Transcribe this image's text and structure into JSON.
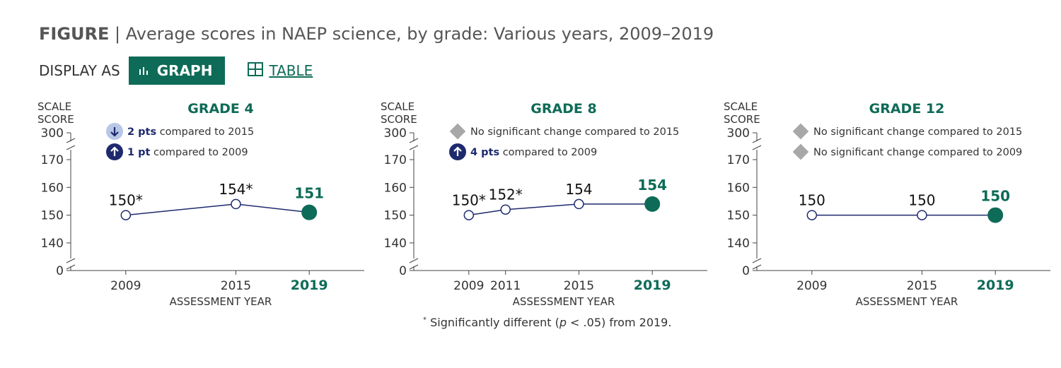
{
  "figure": {
    "prefix": "FIGURE",
    "separator": "|",
    "title": "Average scores in NAEP science, by grade: Various years, 2009–2019"
  },
  "display": {
    "label": "DISPLAY AS",
    "graph_label": "GRAPH",
    "table_label": "TABLE",
    "graph_icon": "bar-chart-icon",
    "table_icon": "grid-table-icon"
  },
  "colors": {
    "accent": "#0e6b57",
    "navy": "#1e2a6e",
    "badge_down": "#b8c7e6",
    "diamond": "#a8a8a8"
  },
  "footnote": {
    "mark": "*",
    "text_before": "Significantly different (",
    "p": "p",
    "text_after": " < .05) from 2019."
  },
  "chart_data": [
    {
      "type": "line",
      "title": "GRADE 4",
      "ylabel": "SCALE SCORE",
      "xlabel": "ASSESSMENT YEAR",
      "y_ticks": [
        "0",
        "140",
        "150",
        "160",
        "170",
        "300"
      ],
      "y_break": true,
      "ylim": [
        135,
        175
      ],
      "x_range": [
        2006,
        2022
      ],
      "x": [
        2009,
        2015,
        2019
      ],
      "x_labels": [
        "2009",
        "2015",
        "2019"
      ],
      "values": [
        150,
        154,
        151
      ],
      "labels": [
        "150*",
        "154*",
        "151"
      ],
      "highlight_last": true,
      "notes": [
        {
          "icon": "down",
          "bold": "2 pts",
          "text": " compared to 2015"
        },
        {
          "icon": "up",
          "bold": "1 pt",
          "text": " compared to 2009"
        }
      ]
    },
    {
      "type": "line",
      "title": "GRADE 8",
      "ylabel": "SCALE SCORE",
      "xlabel": "ASSESSMENT YEAR",
      "y_ticks": [
        "0",
        "140",
        "150",
        "160",
        "170",
        "300"
      ],
      "y_break": true,
      "ylim": [
        135,
        175
      ],
      "x_range": [
        2006,
        2022
      ],
      "x": [
        2009,
        2011,
        2015,
        2019
      ],
      "x_labels": [
        "2009",
        "2011",
        "2015",
        "2019"
      ],
      "values": [
        150,
        152,
        154,
        154
      ],
      "labels": [
        "150*",
        "152*",
        "154",
        "154"
      ],
      "highlight_last": true,
      "notes": [
        {
          "icon": "diamond",
          "bold": "",
          "text": "No significant change compared to 2015"
        },
        {
          "icon": "up",
          "bold": "4 pts",
          "text": " compared to 2009"
        }
      ]
    },
    {
      "type": "line",
      "title": "GRADE 12",
      "ylabel": "SCALE SCORE",
      "xlabel": "ASSESSMENT YEAR",
      "y_ticks": [
        "0",
        "140",
        "150",
        "160",
        "170",
        "300"
      ],
      "y_break": true,
      "ylim": [
        135,
        175
      ],
      "x_range": [
        2006,
        2022
      ],
      "x": [
        2009,
        2015,
        2019
      ],
      "x_labels": [
        "2009",
        "2015",
        "2019"
      ],
      "values": [
        150,
        150,
        150
      ],
      "labels": [
        "150",
        "150",
        "150"
      ],
      "highlight_last": true,
      "notes": [
        {
          "icon": "diamond",
          "bold": "",
          "text": "No significant change compared to 2015"
        },
        {
          "icon": "diamond",
          "bold": "",
          "text": "No significant change compared to 2009"
        }
      ]
    }
  ]
}
